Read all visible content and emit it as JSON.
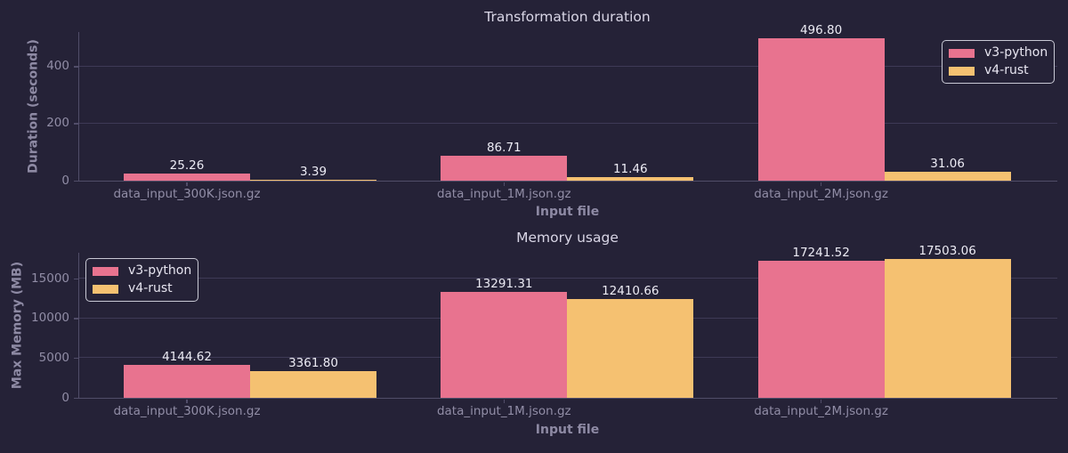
{
  "figure": {
    "background": "#252237"
  },
  "colors": {
    "v3_python": "#e8738f",
    "v4_rust": "#f5c171",
    "gridline": "#3e3a56",
    "axis_spine": "#514d69",
    "tick_text": "#918da6",
    "axis_label_text": "#8e8aa4",
    "title_text": "#d9d6e6",
    "value_label_text": "#ecebf4",
    "legend_border": "#c8c8d4"
  },
  "chart_data": [
    {
      "type": "bar",
      "title": "Transformation duration",
      "xlabel": "Input file",
      "ylabel": "Duration (seconds)",
      "categories": [
        "data_input_300K.json.gz",
        "data_input_1M.json.gz",
        "data_input_2M.json.gz"
      ],
      "series": [
        {
          "name": "v3-python",
          "color": "#e8738f",
          "values": [
            25.26,
            86.71,
            496.8
          ]
        },
        {
          "name": "v4-rust",
          "color": "#f5c171",
          "values": [
            3.39,
            11.46,
            31.06
          ]
        }
      ],
      "yticks": [
        0,
        200,
        400
      ],
      "ylim": [
        0,
        520
      ],
      "grid": true,
      "legend_position": "top-right",
      "value_label_decimals": 2
    },
    {
      "type": "bar",
      "title": "Memory usage",
      "xlabel": "Input file",
      "ylabel": "Max Memory (MB)",
      "categories": [
        "data_input_300K.json.gz",
        "data_input_1M.json.gz",
        "data_input_2M.json.gz"
      ],
      "series": [
        {
          "name": "v3-python",
          "color": "#e8738f",
          "values": [
            4144.62,
            13291.31,
            17241.52
          ]
        },
        {
          "name": "v4-rust",
          "color": "#f5c171",
          "values": [
            3361.8,
            12410.66,
            17503.06
          ]
        }
      ],
      "yticks": [
        0,
        5000,
        10000,
        15000
      ],
      "ylim": [
        0,
        18280
      ],
      "grid": true,
      "legend_position": "top-left",
      "value_label_decimals": 2
    }
  ]
}
